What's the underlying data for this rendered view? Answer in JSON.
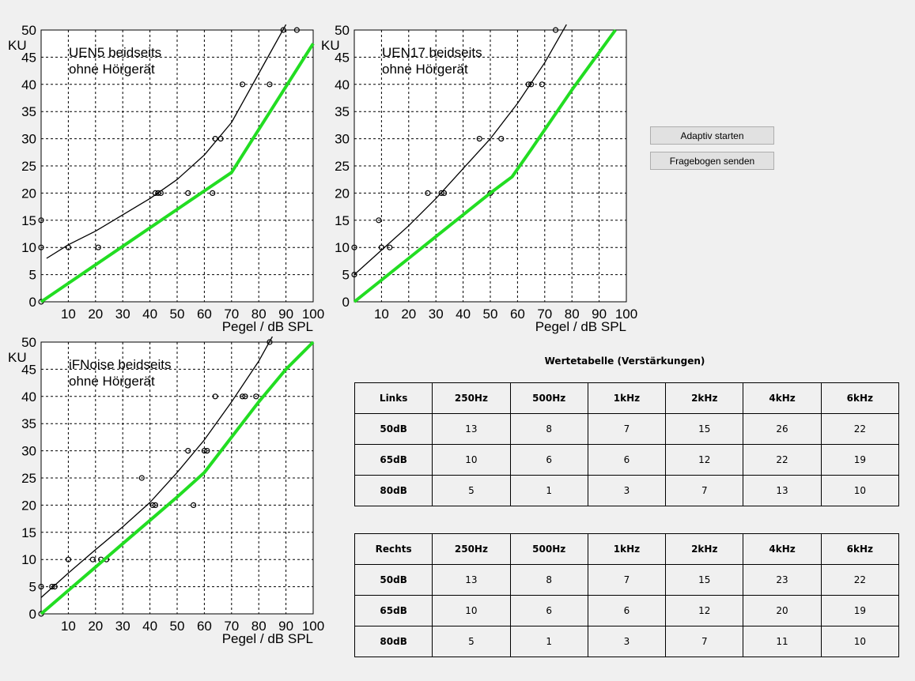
{
  "chart_data": [
    {
      "type": "scatter",
      "title": "UEN5 beidseits",
      "subtitle": "ohne Hörgerät",
      "xlabel": "Pegel / dB SPL",
      "ylabel": "KU",
      "xlim": [
        0,
        100
      ],
      "ylim": [
        0,
        50
      ],
      "grid": true,
      "x_ticks": [
        "10",
        "20",
        "30",
        "40",
        "50",
        "60",
        "70",
        "80",
        "90",
        "100"
      ],
      "y_ticks": [
        "0",
        "5",
        "10",
        "15",
        "20",
        "25",
        "30",
        "35",
        "40",
        "45",
        "50"
      ],
      "series": [
        {
          "role": "measured",
          "color": "#000000",
          "points": [
            [
              0,
              0
            ],
            [
              0,
              10
            ],
            [
              0,
              15
            ],
            [
              10,
              10
            ],
            [
              21,
              10
            ],
            [
              42,
              20
            ],
            [
              43,
              20
            ],
            [
              44,
              20
            ],
            [
              54,
              20
            ],
            [
              63,
              20
            ],
            [
              64,
              30
            ],
            [
              66,
              30
            ],
            [
              74,
              40
            ],
            [
              84,
              40
            ],
            [
              89,
              50
            ],
            [
              94,
              50
            ]
          ]
        },
        {
          "role": "fit",
          "color": "#000000",
          "points": [
            [
              2,
              8
            ],
            [
              10,
              10.5
            ],
            [
              20,
              13
            ],
            [
              30,
              16
            ],
            [
              40,
              19
            ],
            [
              50,
              22.5
            ],
            [
              60,
              27
            ],
            [
              70,
              33
            ],
            [
              80,
              42
            ],
            [
              90,
              51
            ]
          ]
        },
        {
          "role": "target",
          "color": "#22dd22",
          "points": [
            [
              0,
              0
            ],
            [
              10,
              3.4
            ],
            [
              20,
              6.8
            ],
            [
              30,
              10.2
            ],
            [
              40,
              13.6
            ],
            [
              50,
              17
            ],
            [
              60,
              20.4
            ],
            [
              70,
              23.8
            ],
            [
              80,
              31.7
            ],
            [
              90,
              39.6
            ],
            [
              100,
              47.5
            ]
          ]
        }
      ]
    },
    {
      "type": "scatter",
      "title": "UEN17 beidseits",
      "subtitle": "ohne Hörgerät",
      "xlabel": "Pegel / dB SPL",
      "ylabel": "KU",
      "xlim": [
        0,
        100
      ],
      "ylim": [
        0,
        50
      ],
      "grid": true,
      "x_ticks": [
        "10",
        "20",
        "30",
        "40",
        "50",
        "60",
        "70",
        "80",
        "90",
        "100"
      ],
      "y_ticks": [
        "0",
        "5",
        "10",
        "15",
        "20",
        "25",
        "30",
        "35",
        "40",
        "45",
        "50"
      ],
      "series": [
        {
          "role": "measured",
          "color": "#000000",
          "points": [
            [
              0,
              5
            ],
            [
              0,
              10
            ],
            [
              9,
              15
            ],
            [
              10,
              10
            ],
            [
              13,
              10
            ],
            [
              27,
              20
            ],
            [
              32,
              20
            ],
            [
              33,
              20
            ],
            [
              46,
              30
            ],
            [
              50,
              20
            ],
            [
              54,
              30
            ],
            [
              64,
              40
            ],
            [
              65,
              40
            ],
            [
              69,
              40
            ],
            [
              74,
              50
            ]
          ]
        },
        {
          "role": "fit",
          "color": "#000000",
          "points": [
            [
              0,
              5
            ],
            [
              10,
              9.5
            ],
            [
              20,
              14
            ],
            [
              30,
              19
            ],
            [
              40,
              24.5
            ],
            [
              50,
              30
            ],
            [
              60,
              36.5
            ],
            [
              70,
              44
            ],
            [
              78,
              51
            ]
          ]
        },
        {
          "role": "target",
          "color": "#22dd22",
          "points": [
            [
              0,
              0
            ],
            [
              10,
              4
            ],
            [
              20,
              8
            ],
            [
              30,
              12
            ],
            [
              40,
              16
            ],
            [
              50,
              20
            ],
            [
              58,
              23
            ],
            [
              65,
              28
            ],
            [
              80,
              39
            ],
            [
              96,
              50
            ]
          ]
        }
      ]
    },
    {
      "type": "scatter",
      "title": "iFNoise beidseits",
      "subtitle": "ohne Hörgerät",
      "xlabel": "Pegel / dB SPL",
      "ylabel": "KU",
      "xlim": [
        0,
        100
      ],
      "ylim": [
        0,
        50
      ],
      "grid": true,
      "x_ticks": [
        "10",
        "20",
        "30",
        "40",
        "50",
        "60",
        "70",
        "80",
        "90",
        "100"
      ],
      "y_ticks": [
        "0",
        "5",
        "10",
        "15",
        "20",
        "25",
        "30",
        "35",
        "40",
        "45",
        "50"
      ],
      "series": [
        {
          "role": "measured",
          "color": "#000000",
          "points": [
            [
              0,
              0
            ],
            [
              0,
              5
            ],
            [
              4,
              5
            ],
            [
              5,
              5
            ],
            [
              10,
              10
            ],
            [
              19,
              10
            ],
            [
              22,
              10
            ],
            [
              24,
              10
            ],
            [
              37,
              25
            ],
            [
              41,
              20
            ],
            [
              42,
              20
            ],
            [
              54,
              30
            ],
            [
              56,
              20
            ],
            [
              60,
              30
            ],
            [
              61,
              30
            ],
            [
              64,
              40
            ],
            [
              74,
              40
            ],
            [
              75,
              40
            ],
            [
              79,
              40
            ],
            [
              84,
              50
            ]
          ]
        },
        {
          "role": "fit",
          "color": "#000000",
          "points": [
            [
              0,
              3
            ],
            [
              10,
              7.5
            ],
            [
              20,
              11.8
            ],
            [
              30,
              16
            ],
            [
              40,
              20.5
            ],
            [
              50,
              26
            ],
            [
              60,
              32
            ],
            [
              70,
              39
            ],
            [
              80,
              46.5
            ],
            [
              85,
              51
            ]
          ]
        },
        {
          "role": "target",
          "color": "#22dd22",
          "points": [
            [
              0,
              0
            ],
            [
              10,
              4.3
            ],
            [
              20,
              8.6
            ],
            [
              30,
              12.9
            ],
            [
              40,
              17.2
            ],
            [
              50,
              21.5
            ],
            [
              60,
              26
            ],
            [
              70,
              32.5
            ],
            [
              80,
              39
            ],
            [
              90,
              45
            ],
            [
              100,
              50
            ]
          ]
        }
      ]
    }
  ],
  "buttons": {
    "adaptiv": "Adaptiv starten",
    "fragebogen": "Fragebogen senden"
  },
  "table_title": "Wertetabelle (Verstärkungen)",
  "tables": {
    "links": {
      "header": [
        "Links",
        "250Hz",
        "500Hz",
        "1kHz",
        "2kHz",
        "4kHz",
        "6kHz"
      ],
      "rows": [
        [
          "50dB",
          "13",
          "8",
          "7",
          "15",
          "26",
          "22"
        ],
        [
          "65dB",
          "10",
          "6",
          "6",
          "12",
          "22",
          "19"
        ],
        [
          "80dB",
          "5",
          "1",
          "3",
          "7",
          "13",
          "10"
        ]
      ]
    },
    "rechts": {
      "header": [
        "Rechts",
        "250Hz",
        "500Hz",
        "1kHz",
        "2kHz",
        "4kHz",
        "6kHz"
      ],
      "rows": [
        [
          "50dB",
          "13",
          "8",
          "7",
          "15",
          "23",
          "22"
        ],
        [
          "65dB",
          "10",
          "6",
          "6",
          "12",
          "20",
          "19"
        ],
        [
          "80dB",
          "5",
          "1",
          "3",
          "7",
          "11",
          "10"
        ]
      ]
    }
  }
}
